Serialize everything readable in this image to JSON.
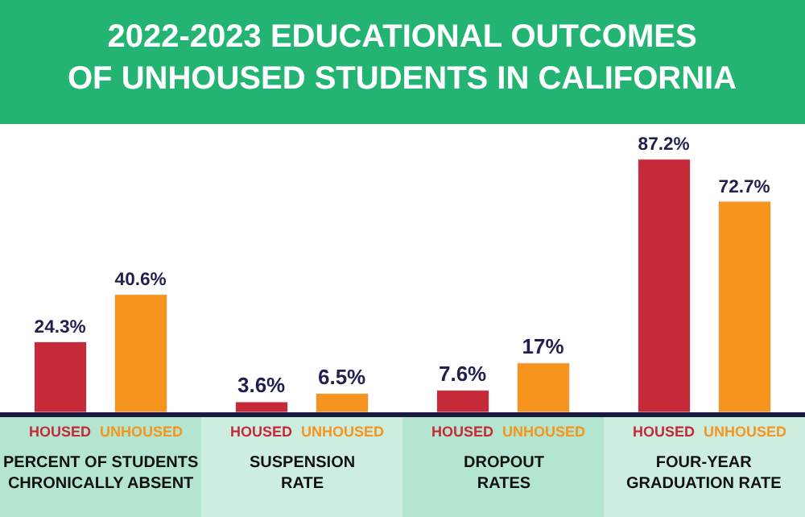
{
  "chart_data": {
    "type": "bar",
    "title": "2022-2023 EDUCATIONAL OUTCOMES\nOF UNHOUSED STUDENTS IN CALIFORNIA",
    "categories": [
      "PERCENT OF STUDENTS\nCHRONICALLY ABSENT",
      "SUSPENSION\nRATE",
      "DROPOUT\nRATES",
      "FOUR-YEAR\nGRADUATION RATE"
    ],
    "series": [
      {
        "name": "HOUSED",
        "color": "#c62a38",
        "values": [
          24.3,
          3.6,
          7.6,
          87.2
        ],
        "value_labels": [
          "24.3%",
          "3.6%",
          "7.6%",
          "87.2%"
        ]
      },
      {
        "name": "UNHOUSED",
        "color": "#f7941d",
        "values": [
          40.6,
          6.5,
          17,
          72.7
        ],
        "value_labels": [
          "40.6%",
          "6.5%",
          "17%",
          "72.7%"
        ]
      }
    ],
    "legend": false
  }
}
